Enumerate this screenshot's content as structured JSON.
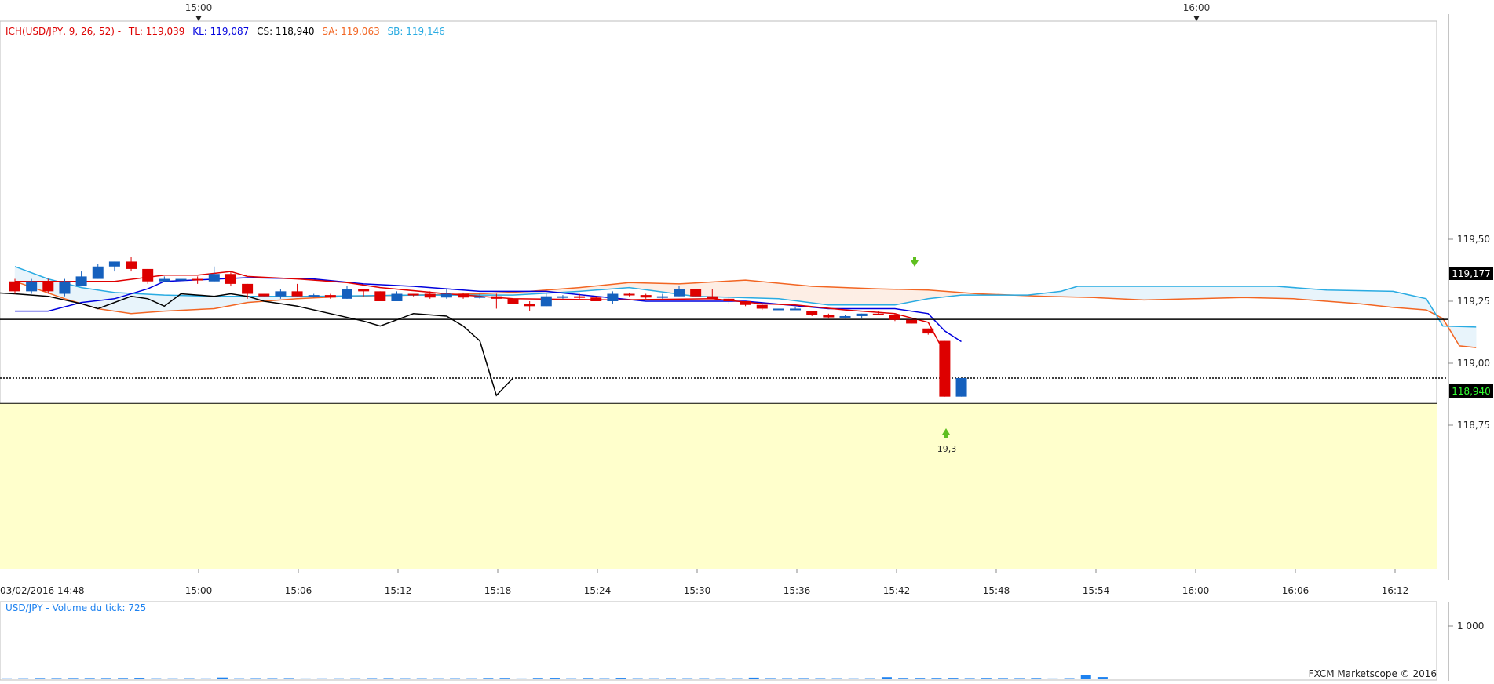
{
  "legend": {
    "name": "ICH(USD/JPY, 9, 26, 52) -",
    "tl": "TL: 119,039",
    "kl": "KL: 119,087",
    "cs": "CS: 118,940",
    "sa": "SA: 119,063",
    "sb": "SB: 119,146"
  },
  "top_markers": [
    "15:00",
    "16:00"
  ],
  "volume_label": "USD/JPY - Volume du tick: 725",
  "volume_tick_label": "1 000",
  "copyright": "FXCM Marketscope © 2016",
  "date_label": "03/02/2016 14:48",
  "signal_label": "19,3",
  "price_tags": {
    "support": "119,177",
    "last": "118,940"
  },
  "colors": {
    "up": "#1560bd",
    "down": "#dd0000",
    "tenkan": "#e00000",
    "kijun": "#0000dd",
    "chikou": "#000000",
    "senkou_a": "#f26522",
    "senkou_b": "#29abe2",
    "zone": "#ffffcc",
    "volume": "#1e82f0",
    "legend_cs": "#000000"
  },
  "chart_data": {
    "type": "candlestick",
    "x_ticks": [
      "15:00",
      "15:06",
      "15:12",
      "15:18",
      "15:24",
      "15:30",
      "15:36",
      "15:42",
      "15:48",
      "15:54",
      "16:00",
      "16:06",
      "16:12"
    ],
    "y_ticks": [
      "119,50",
      "119,25",
      "119,00",
      "118,75"
    ],
    "ylim": [
      118.575,
      119.7
    ],
    "horizontal_levels": {
      "solid": 119.177,
      "dotted": 118.94,
      "zone_top": 118.838
    },
    "candles": [
      {
        "t": 0,
        "o": 119.33,
        "h": 119.34,
        "l": 119.28,
        "c": 119.29
      },
      {
        "t": 1,
        "o": 119.29,
        "h": 119.34,
        "l": 119.28,
        "c": 119.33
      },
      {
        "t": 2,
        "o": 119.33,
        "h": 119.34,
        "l": 119.28,
        "c": 119.29
      },
      {
        "t": 3,
        "o": 119.28,
        "h": 119.34,
        "l": 119.27,
        "c": 119.33
      },
      {
        "t": 4,
        "o": 119.31,
        "h": 119.37,
        "l": 119.31,
        "c": 119.35
      },
      {
        "t": 5,
        "o": 119.34,
        "h": 119.4,
        "l": 119.34,
        "c": 119.39
      },
      {
        "t": 6,
        "o": 119.39,
        "h": 119.41,
        "l": 119.37,
        "c": 119.41
      },
      {
        "t": 7,
        "o": 119.41,
        "h": 119.43,
        "l": 119.37,
        "c": 119.38
      },
      {
        "t": 8,
        "o": 119.38,
        "h": 119.38,
        "l": 119.32,
        "c": 119.33
      },
      {
        "t": 9,
        "o": 119.33,
        "h": 119.35,
        "l": 119.33,
        "c": 119.34
      },
      {
        "t": 10,
        "o": 119.34,
        "h": 119.35,
        "l": 119.33,
        "c": 119.34
      },
      {
        "t": 11,
        "o": 119.34,
        "h": 119.35,
        "l": 119.32,
        "c": 119.335
      },
      {
        "t": 12,
        "o": 119.33,
        "h": 119.39,
        "l": 119.33,
        "c": 119.36
      },
      {
        "t": 13,
        "o": 119.36,
        "h": 119.37,
        "l": 119.31,
        "c": 119.32
      },
      {
        "t": 14,
        "o": 119.32,
        "h": 119.32,
        "l": 119.26,
        "c": 119.28
      },
      {
        "t": 15,
        "o": 119.28,
        "h": 119.28,
        "l": 119.27,
        "c": 119.27
      },
      {
        "t": 16,
        "o": 119.27,
        "h": 119.3,
        "l": 119.26,
        "c": 119.29
      },
      {
        "t": 17,
        "o": 119.29,
        "h": 119.32,
        "l": 119.27,
        "c": 119.27
      },
      {
        "t": 18,
        "o": 119.27,
        "h": 119.28,
        "l": 119.265,
        "c": 119.275
      },
      {
        "t": 19,
        "o": 119.275,
        "h": 119.28,
        "l": 119.26,
        "c": 119.265
      },
      {
        "t": 20,
        "o": 119.26,
        "h": 119.31,
        "l": 119.26,
        "c": 119.3
      },
      {
        "t": 21,
        "o": 119.3,
        "h": 119.3,
        "l": 119.27,
        "c": 119.29
      },
      {
        "t": 22,
        "o": 119.29,
        "h": 119.29,
        "l": 119.25,
        "c": 119.25
      },
      {
        "t": 23,
        "o": 119.25,
        "h": 119.29,
        "l": 119.25,
        "c": 119.28
      },
      {
        "t": 24,
        "o": 119.28,
        "h": 119.28,
        "l": 119.27,
        "c": 119.275
      },
      {
        "t": 25,
        "o": 119.28,
        "h": 119.29,
        "l": 119.26,
        "c": 119.265
      },
      {
        "t": 26,
        "o": 119.265,
        "h": 119.3,
        "l": 119.26,
        "c": 119.28
      },
      {
        "t": 27,
        "o": 119.28,
        "h": 119.285,
        "l": 119.26,
        "c": 119.265
      },
      {
        "t": 28,
        "o": 119.265,
        "h": 119.28,
        "l": 119.26,
        "c": 119.27
      },
      {
        "t": 29,
        "o": 119.27,
        "h": 119.28,
        "l": 119.22,
        "c": 119.26
      },
      {
        "t": 30,
        "o": 119.26,
        "h": 119.27,
        "l": 119.22,
        "c": 119.24
      },
      {
        "t": 31,
        "o": 119.24,
        "h": 119.25,
        "l": 119.21,
        "c": 119.23
      },
      {
        "t": 32,
        "o": 119.23,
        "h": 119.28,
        "l": 119.23,
        "c": 119.27
      },
      {
        "t": 33,
        "o": 119.27,
        "h": 119.275,
        "l": 119.26,
        "c": 119.27
      },
      {
        "t": 34,
        "o": 119.27,
        "h": 119.28,
        "l": 119.26,
        "c": 119.265
      },
      {
        "t": 35,
        "o": 119.265,
        "h": 119.27,
        "l": 119.26,
        "c": 119.25
      },
      {
        "t": 36,
        "o": 119.25,
        "h": 119.29,
        "l": 119.24,
        "c": 119.28
      },
      {
        "t": 37,
        "o": 119.28,
        "h": 119.285,
        "l": 119.27,
        "c": 119.275
      },
      {
        "t": 38,
        "o": 119.275,
        "h": 119.28,
        "l": 119.26,
        "c": 119.265
      },
      {
        "t": 39,
        "o": 119.265,
        "h": 119.28,
        "l": 119.26,
        "c": 119.27
      },
      {
        "t": 40,
        "o": 119.27,
        "h": 119.31,
        "l": 119.27,
        "c": 119.3
      },
      {
        "t": 41,
        "o": 119.3,
        "h": 119.3,
        "l": 119.27,
        "c": 119.27
      },
      {
        "t": 42,
        "o": 119.27,
        "h": 119.3,
        "l": 119.26,
        "c": 119.26
      },
      {
        "t": 43,
        "o": 119.26,
        "h": 119.27,
        "l": 119.24,
        "c": 119.25
      },
      {
        "t": 44,
        "o": 119.25,
        "h": 119.25,
        "l": 119.23,
        "c": 119.235
      },
      {
        "t": 45,
        "o": 119.235,
        "h": 119.24,
        "l": 119.215,
        "c": 119.22
      },
      {
        "t": 46,
        "o": 119.22,
        "h": 119.22,
        "l": 119.215,
        "c": 119.22
      },
      {
        "t": 47,
        "o": 119.22,
        "h": 119.225,
        "l": 119.215,
        "c": 119.22
      },
      {
        "t": 48,
        "o": 119.21,
        "h": 119.21,
        "l": 119.19,
        "c": 119.195
      },
      {
        "t": 49,
        "o": 119.195,
        "h": 119.2,
        "l": 119.18,
        "c": 119.185
      },
      {
        "t": 50,
        "o": 119.185,
        "h": 119.195,
        "l": 119.18,
        "c": 119.19
      },
      {
        "t": 51,
        "o": 119.19,
        "h": 119.2,
        "l": 119.18,
        "c": 119.2
      },
      {
        "t": 52,
        "o": 119.2,
        "h": 119.21,
        "l": 119.195,
        "c": 119.195
      },
      {
        "t": 53,
        "o": 119.195,
        "h": 119.2,
        "l": 119.17,
        "c": 119.175
      },
      {
        "t": 54,
        "o": 119.175,
        "h": 119.175,
        "l": 119.16,
        "c": 119.16
      },
      {
        "t": 55,
        "o": 119.14,
        "h": 119.14,
        "l": 119.115,
        "c": 119.12
      },
      {
        "t": 56,
        "o": 119.09,
        "h": 119.09,
        "l": 118.865,
        "c": 118.865
      },
      {
        "t": 57,
        "o": 118.865,
        "h": 118.94,
        "l": 118.865,
        "c": 118.94
      }
    ],
    "tenkan": [
      [
        0,
        119.33
      ],
      [
        6,
        119.33
      ],
      [
        9,
        119.355
      ],
      [
        11,
        119.355
      ],
      [
        13,
        119.37
      ],
      [
        14,
        119.35
      ],
      [
        17,
        119.34
      ],
      [
        20,
        119.325
      ],
      [
        22,
        119.305
      ],
      [
        26,
        119.28
      ],
      [
        30,
        119.26
      ],
      [
        36,
        119.255
      ],
      [
        42,
        119.26
      ],
      [
        45,
        119.24
      ],
      [
        47,
        119.235
      ],
      [
        50,
        119.215
      ],
      [
        53,
        119.2
      ],
      [
        55,
        119.165
      ],
      [
        56,
        119.04
      ]
    ],
    "kijun": [
      [
        0,
        119.21
      ],
      [
        2,
        119.21
      ],
      [
        4,
        119.245
      ],
      [
        6,
        119.26
      ],
      [
        8,
        119.3
      ],
      [
        9,
        119.33
      ],
      [
        14,
        119.345
      ],
      [
        18,
        119.34
      ],
      [
        21,
        119.32
      ],
      [
        24,
        119.31
      ],
      [
        28,
        119.29
      ],
      [
        32,
        119.29
      ],
      [
        38,
        119.25
      ],
      [
        44,
        119.25
      ],
      [
        49,
        119.22
      ],
      [
        53,
        119.22
      ],
      [
        55,
        119.2
      ],
      [
        56,
        119.13
      ],
      [
        57,
        119.087
      ]
    ],
    "chikou": [
      [
        -12,
        119.32
      ],
      [
        0,
        119.28
      ],
      [
        2,
        119.27
      ],
      [
        4,
        119.24
      ],
      [
        5,
        119.22
      ],
      [
        7,
        119.27
      ],
      [
        8,
        119.26
      ],
      [
        9,
        119.23
      ],
      [
        10,
        119.28
      ],
      [
        12,
        119.27
      ],
      [
        13,
        119.28
      ],
      [
        14,
        119.27
      ],
      [
        15,
        119.25
      ],
      [
        17,
        119.23
      ],
      [
        19,
        119.2
      ],
      [
        21,
        119.17
      ],
      [
        22,
        119.15
      ],
      [
        24,
        119.2
      ],
      [
        26,
        119.19
      ],
      [
        27,
        119.15
      ],
      [
        28,
        119.09
      ],
      [
        29,
        118.87
      ],
      [
        30,
        118.94
      ]
    ],
    "senkou_a": [
      [
        0,
        119.33
      ],
      [
        3,
        119.26
      ],
      [
        5,
        119.22
      ],
      [
        7,
        119.2
      ],
      [
        9,
        119.21
      ],
      [
        12,
        119.22
      ],
      [
        14,
        119.245
      ],
      [
        17,
        119.26
      ],
      [
        20,
        119.27
      ],
      [
        28,
        119.28
      ],
      [
        31,
        119.29
      ],
      [
        34,
        119.305
      ],
      [
        37,
        119.325
      ],
      [
        40,
        119.32
      ],
      [
        44,
        119.335
      ],
      [
        48,
        119.31
      ],
      [
        52,
        119.3
      ],
      [
        55,
        119.295
      ],
      [
        58,
        119.28
      ],
      [
        62,
        119.27
      ],
      [
        65,
        119.265
      ],
      [
        68,
        119.255
      ],
      [
        71,
        119.26
      ],
      [
        74,
        119.265
      ],
      [
        77,
        119.26
      ],
      [
        81,
        119.24
      ],
      [
        83,
        119.225
      ],
      [
        85,
        119.215
      ],
      [
        86,
        119.18
      ],
      [
        87,
        119.07
      ],
      [
        88,
        119.063
      ]
    ],
    "senkou_b": [
      [
        0,
        119.39
      ],
      [
        2,
        119.34
      ],
      [
        4,
        119.305
      ],
      [
        6,
        119.285
      ],
      [
        9,
        119.275
      ],
      [
        12,
        119.27
      ],
      [
        18,
        119.27
      ],
      [
        24,
        119.275
      ],
      [
        30,
        119.275
      ],
      [
        34,
        119.29
      ],
      [
        37,
        119.305
      ],
      [
        41,
        119.27
      ],
      [
        46,
        119.26
      ],
      [
        49,
        119.235
      ],
      [
        53,
        119.235
      ],
      [
        55,
        119.26
      ],
      [
        57,
        119.275
      ],
      [
        61,
        119.275
      ],
      [
        63,
        119.29
      ],
      [
        64,
        119.31
      ],
      [
        76,
        119.31
      ],
      [
        79,
        119.295
      ],
      [
        83,
        119.29
      ],
      [
        85,
        119.26
      ],
      [
        86,
        119.15
      ],
      [
        88,
        119.146
      ]
    ],
    "volume": [
      18,
      20,
      24,
      23,
      24,
      24,
      24,
      25,
      28,
      20,
      19,
      21,
      18,
      34,
      20,
      22,
      22,
      23,
      17,
      18,
      19,
      20,
      22,
      23,
      21,
      21,
      20,
      21,
      20,
      25,
      26,
      17,
      26,
      28,
      20,
      25,
      21,
      28,
      21,
      20,
      22,
      21,
      21,
      20,
      21,
      31,
      23,
      22,
      23,
      22,
      21,
      19,
      21,
      41,
      26,
      26,
      26,
      27,
      23,
      26,
      24,
      23,
      25,
      17,
      22,
      86,
      43
    ]
  }
}
